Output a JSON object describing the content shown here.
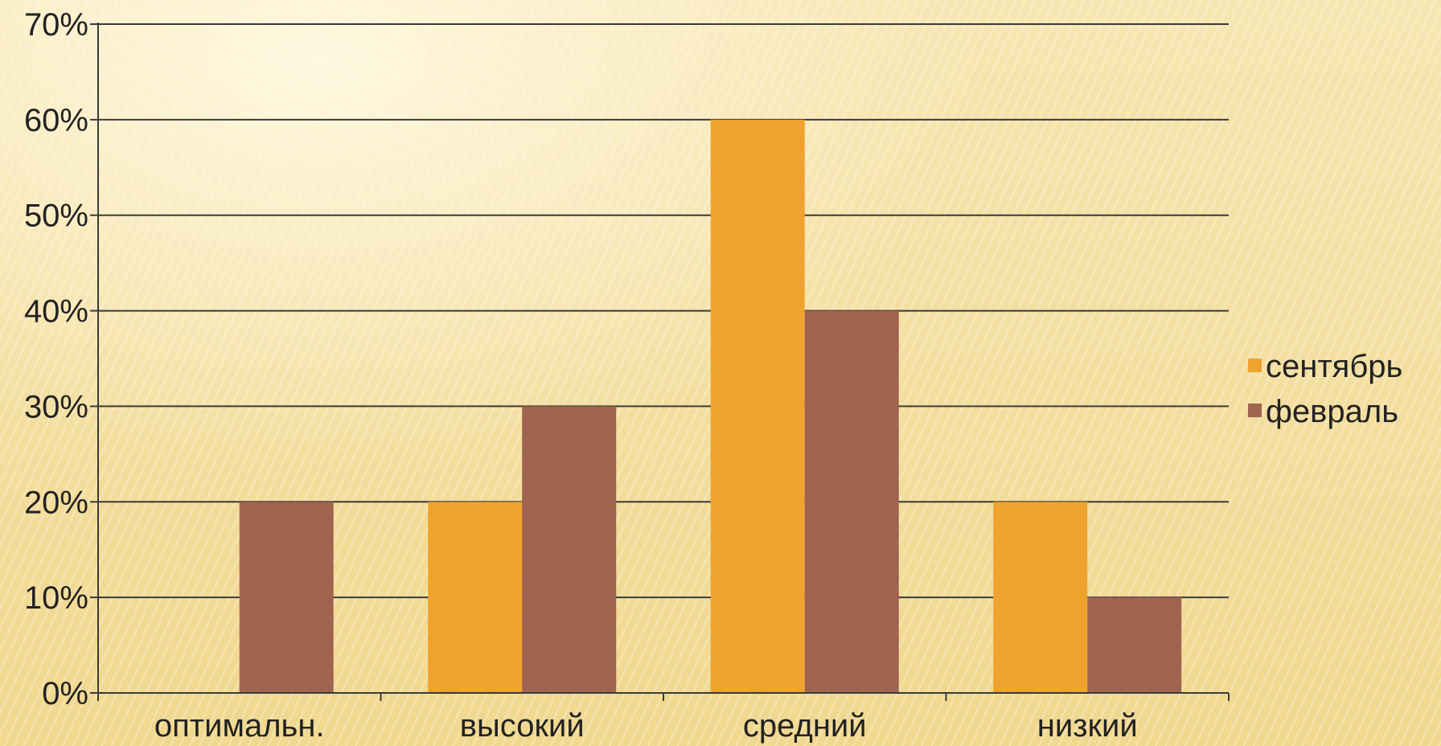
{
  "chart_data": {
    "type": "bar",
    "categories": [
      "оптимальн.",
      "высокий",
      "средний",
      "низкий"
    ],
    "series": [
      {
        "name": "сентябрь",
        "values": [
          0,
          20,
          60,
          20
        ],
        "color": "#f0a22e"
      },
      {
        "name": "февраль",
        "values": [
          20,
          30,
          40,
          10
        ],
        "color": "#a06350"
      }
    ],
    "y_ticks": [
      "0%",
      "10%",
      "20%",
      "30%",
      "40%",
      "50%",
      "60%",
      "70%"
    ],
    "ylim": [
      0,
      70
    ],
    "y_unit": "%",
    "grid": true,
    "legend": "right",
    "title": "",
    "xlabel": "",
    "ylabel": ""
  }
}
